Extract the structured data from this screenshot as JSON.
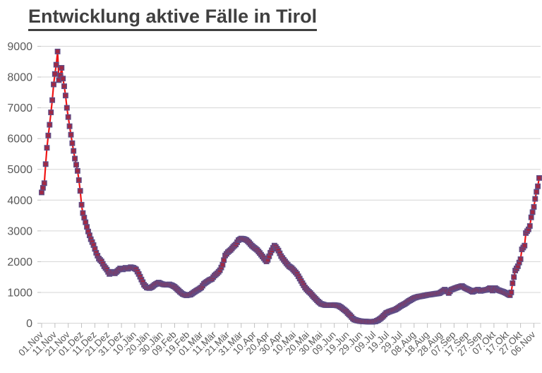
{
  "title": {
    "text": "Entwicklung aktive Fälle in Tirol"
  },
  "colors": {
    "title": "#404040",
    "axis_text": "#595959",
    "gridline": "#d6d6d6",
    "tick": "#bfbfbf",
    "line": "#f01414",
    "marker_fill": "#a02944",
    "marker_stroke": "#5e4d87"
  },
  "chart_data": {
    "type": "line",
    "title": "Entwicklung aktive Fälle in Tirol",
    "xlabel": "",
    "ylabel": "",
    "grid": "horizontal",
    "legend": "none",
    "marker": "square",
    "x_unit": "day",
    "points_per_day": 1,
    "x_tick_interval_days": 10,
    "x_tick_labels": [
      "01.Nov",
      "11.Nov",
      "21.Nov",
      "01.Dez",
      "11.Dez",
      "21.Dez",
      "31.Dez",
      "10.Jän",
      "20.Jän",
      "30.Jän",
      "09.Feb",
      "19.Feb",
      "01.Mär",
      "11.Mär",
      "21.Mär",
      "31.Mär",
      "10.Apr",
      "20.Apr",
      "30.Apr",
      "10.Mai",
      "20.Mai",
      "30.Mai",
      "09.Jun",
      "19.Jun",
      "29.Jun",
      "09.Jul",
      "19.Jul",
      "29.Jul",
      "08.Aug",
      "18.Aug",
      "28.Aug",
      "07.Sep",
      "17.Sep",
      "27.Sep",
      "07.Okt",
      "17.Okt",
      "27.Okt",
      "06.Nov"
    ],
    "y_tick_labels": [
      "0",
      "1000",
      "2000",
      "3000",
      "4000",
      "5000",
      "6000",
      "7000",
      "8000",
      "9000"
    ],
    "ylim": [
      0,
      9000
    ],
    "y_step": 1000,
    "n_days": 375,
    "anchors": [
      [
        0,
        4250
      ],
      [
        1,
        4400
      ],
      [
        2,
        4550
      ],
      [
        3,
        5170
      ],
      [
        4,
        5700
      ],
      [
        5,
        6100
      ],
      [
        6,
        6450
      ],
      [
        7,
        6850
      ],
      [
        8,
        7250
      ],
      [
        9,
        7760
      ],
      [
        10,
        8100
      ],
      [
        11,
        8400
      ],
      [
        12,
        8830
      ],
      [
        13,
        7900
      ],
      [
        14,
        8050
      ],
      [
        15,
        8300
      ],
      [
        16,
        7950
      ],
      [
        17,
        7700
      ],
      [
        18,
        7400
      ],
      [
        19,
        7000
      ],
      [
        21,
        6400
      ],
      [
        23,
        5850
      ],
      [
        25,
        5350
      ],
      [
        27,
        4950
      ],
      [
        28,
        4650
      ],
      [
        29,
        4300
      ],
      [
        30,
        3850
      ],
      [
        31,
        3580
      ],
      [
        33,
        3280
      ],
      [
        35,
        2980
      ],
      [
        37,
        2730
      ],
      [
        39,
        2540
      ],
      [
        41,
        2290
      ],
      [
        43,
        2100
      ],
      [
        45,
        2010
      ],
      [
        47,
        1850
      ],
      [
        49,
        1740
      ],
      [
        51,
        1600
      ],
      [
        53,
        1670
      ],
      [
        55,
        1620
      ],
      [
        57,
        1700
      ],
      [
        59,
        1780
      ],
      [
        61,
        1750
      ],
      [
        63,
        1800
      ],
      [
        65,
        1770
      ],
      [
        67,
        1820
      ],
      [
        69,
        1800
      ],
      [
        71,
        1750
      ],
      [
        73,
        1600
      ],
      [
        75,
        1420
      ],
      [
        77,
        1250
      ],
      [
        79,
        1160
      ],
      [
        81,
        1140
      ],
      [
        83,
        1180
      ],
      [
        85,
        1250
      ],
      [
        87,
        1300
      ],
      [
        88,
        1320
      ],
      [
        90,
        1280
      ],
      [
        92,
        1255
      ],
      [
        94,
        1250
      ],
      [
        96,
        1260
      ],
      [
        98,
        1230
      ],
      [
        100,
        1180
      ],
      [
        102,
        1100
      ],
      [
        104,
        1020
      ],
      [
        106,
        950
      ],
      [
        108,
        915
      ],
      [
        109,
        905
      ],
      [
        110,
        915
      ],
      [
        112,
        930
      ],
      [
        114,
        990
      ],
      [
        116,
        1050
      ],
      [
        118,
        1100
      ],
      [
        120,
        1160
      ],
      [
        122,
        1280
      ],
      [
        124,
        1340
      ],
      [
        126,
        1400
      ],
      [
        128,
        1440
      ],
      [
        130,
        1550
      ],
      [
        132,
        1620
      ],
      [
        134,
        1720
      ],
      [
        136,
        1900
      ],
      [
        138,
        2200
      ],
      [
        140,
        2310
      ],
      [
        142,
        2380
      ],
      [
        144,
        2480
      ],
      [
        146,
        2560
      ],
      [
        148,
        2700
      ],
      [
        150,
        2750
      ],
      [
        152,
        2740
      ],
      [
        154,
        2700
      ],
      [
        156,
        2620
      ],
      [
        158,
        2520
      ],
      [
        160,
        2450
      ],
      [
        162,
        2380
      ],
      [
        164,
        2280
      ],
      [
        166,
        2170
      ],
      [
        168,
        2060
      ],
      [
        169,
        2010
      ],
      [
        170,
        2060
      ],
      [
        172,
        2290
      ],
      [
        174,
        2450
      ],
      [
        175,
        2520
      ],
      [
        176,
        2480
      ],
      [
        178,
        2360
      ],
      [
        180,
        2180
      ],
      [
        182,
        2060
      ],
      [
        184,
        1950
      ],
      [
        186,
        1850
      ],
      [
        188,
        1790
      ],
      [
        190,
        1700
      ],
      [
        192,
        1600
      ],
      [
        194,
        1450
      ],
      [
        196,
        1300
      ],
      [
        198,
        1160
      ],
      [
        200,
        1060
      ],
      [
        202,
        980
      ],
      [
        204,
        880
      ],
      [
        206,
        790
      ],
      [
        208,
        700
      ],
      [
        210,
        630
      ],
      [
        213,
        590
      ],
      [
        216,
        585
      ],
      [
        220,
        590
      ],
      [
        223,
        570
      ],
      [
        225,
        520
      ],
      [
        227,
        450
      ],
      [
        229,
        380
      ],
      [
        230,
        330
      ],
      [
        232,
        250
      ],
      [
        234,
        150
      ],
      [
        235,
        120
      ],
      [
        237,
        90
      ],
      [
        239,
        70
      ],
      [
        241,
        60
      ],
      [
        243,
        55
      ],
      [
        245,
        50
      ],
      [
        247,
        45
      ],
      [
        249,
        48
      ],
      [
        251,
        60
      ],
      [
        253,
        100
      ],
      [
        255,
        160
      ],
      [
        257,
        240
      ],
      [
        259,
        330
      ],
      [
        261,
        370
      ],
      [
        263,
        400
      ],
      [
        266,
        445
      ],
      [
        268,
        500
      ],
      [
        270,
        560
      ],
      [
        273,
        630
      ],
      [
        276,
        720
      ],
      [
        280,
        820
      ],
      [
        283,
        860
      ],
      [
        287,
        890
      ],
      [
        290,
        920
      ],
      [
        292,
        930
      ],
      [
        295,
        950
      ],
      [
        299,
        975
      ],
      [
        301,
        1030
      ],
      [
        303,
        1090
      ],
      [
        305,
        1030
      ],
      [
        306,
        980
      ],
      [
        308,
        1090
      ],
      [
        311,
        1140
      ],
      [
        313,
        1170
      ],
      [
        316,
        1210
      ],
      [
        318,
        1150
      ],
      [
        321,
        1090
      ],
      [
        324,
        1020
      ],
      [
        326,
        1060
      ],
      [
        328,
        1090
      ],
      [
        330,
        1050
      ],
      [
        332,
        1070
      ],
      [
        335,
        1090
      ],
      [
        337,
        1140
      ],
      [
        339,
        1060
      ],
      [
        341,
        1140
      ],
      [
        343,
        1080
      ],
      [
        345,
        1050
      ],
      [
        347,
        1020
      ],
      [
        349,
        980
      ],
      [
        351,
        930
      ],
      [
        352,
        910
      ],
      [
        353,
        1000
      ],
      [
        354,
        1300
      ],
      [
        355,
        1500
      ],
      [
        356,
        1710
      ],
      [
        358,
        1850
      ],
      [
        359,
        1970
      ],
      [
        360,
        2080
      ],
      [
        361,
        2400
      ],
      [
        363,
        2520
      ],
      [
        364,
        2930
      ],
      [
        366,
        3050
      ],
      [
        367,
        3160
      ],
      [
        368,
        3440
      ],
      [
        370,
        3780
      ],
      [
        371,
        4040
      ],
      [
        372,
        4270
      ],
      [
        373,
        4450
      ],
      [
        374,
        4720
      ]
    ]
  }
}
